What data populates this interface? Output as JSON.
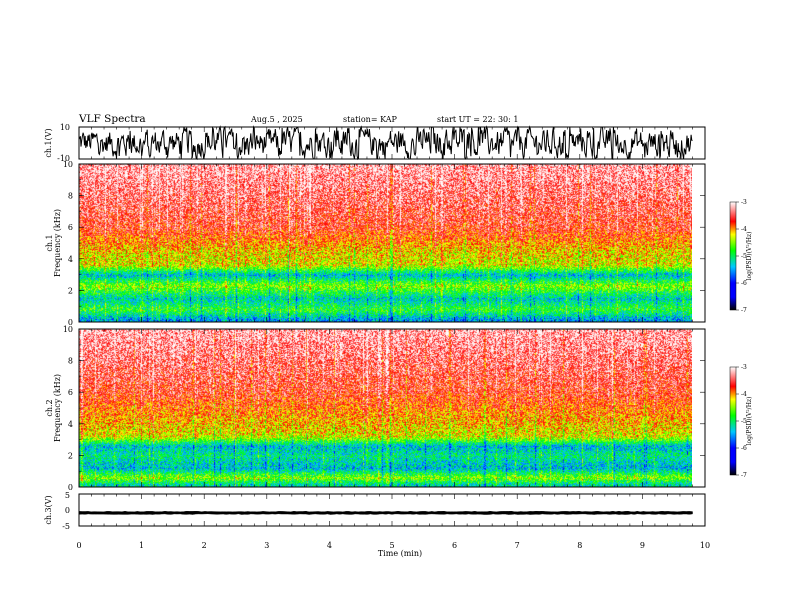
{
  "header": {
    "title": "VLF Spectra",
    "date": "Aug.5 , 2025",
    "station": "station= KAP",
    "start_ut": "start UT =   22: 30: 1"
  },
  "chart_data": [
    {
      "type": "line",
      "name": "ch1-waveform",
      "ylabel": "ch.1(V)",
      "ylim": [
        -10,
        10
      ],
      "ytick_labels": [
        "10",
        "-10"
      ],
      "xlim": [
        0,
        10
      ],
      "data_xmax": 9.8,
      "description": "noisy waveform",
      "typical_range": [
        -9,
        9
      ]
    },
    {
      "type": "heatmap",
      "name": "ch1-spectrogram",
      "ylabel": "ch.1\nFrequency (kHz)",
      "ylim": [
        0,
        10
      ],
      "ytick_labels": [
        "0",
        "2",
        "4",
        "6",
        "8",
        "10"
      ],
      "xlim": [
        0,
        10
      ],
      "data_xmax": 9.8,
      "band_profile": [
        {
          "f": 0.2,
          "level": -5.5
        },
        {
          "f": 0.8,
          "level": -4.8
        },
        {
          "f": 1.5,
          "level": -5.3
        },
        {
          "f": 2.3,
          "level": -4.5
        },
        {
          "f": 3.0,
          "level": -5.4
        },
        {
          "f": 3.6,
          "level": -4.3
        },
        {
          "f": 4.4,
          "level": -4.2
        },
        {
          "f": 6.0,
          "level": -3.6
        },
        {
          "f": 10.0,
          "level": -3.2
        }
      ],
      "colorbar": {
        "label": "log(PSD)(V²/Hz)",
        "ticks": [
          "-3",
          "-4",
          "-5",
          "-6",
          "-7"
        ],
        "range": [
          -7,
          -3
        ]
      }
    },
    {
      "type": "heatmap",
      "name": "ch2-spectrogram",
      "ylabel": "ch.2\nFrequency (kHz)",
      "ylim": [
        0,
        10
      ],
      "ytick_labels": [
        "0",
        "2",
        "4",
        "6",
        "8",
        "10"
      ],
      "xlim": [
        0,
        10
      ],
      "data_xmax": 9.8,
      "band_profile": [
        {
          "f": 0.2,
          "level": -5.2
        },
        {
          "f": 0.6,
          "level": -4.5
        },
        {
          "f": 1.2,
          "level": -5.4
        },
        {
          "f": 2.0,
          "level": -5.1
        },
        {
          "f": 2.6,
          "level": -5.4
        },
        {
          "f": 3.2,
          "level": -4.3
        },
        {
          "f": 4.5,
          "level": -4.0
        },
        {
          "f": 6.0,
          "level": -3.6
        },
        {
          "f": 10.0,
          "level": -3.2
        }
      ],
      "colorbar": {
        "label": "log(PSD)(V²/Hz)",
        "ticks": [
          "-3",
          "-4",
          "-5",
          "-6",
          "-7"
        ],
        "range": [
          -7,
          -3
        ]
      }
    },
    {
      "type": "line",
      "name": "ch3-waveform",
      "ylabel": "ch.3(V)",
      "ylim": [
        -5,
        5
      ],
      "ytick_labels": [
        "5",
        "0",
        "-5"
      ],
      "xlim": [
        0,
        10
      ],
      "data_xmax": 9.8,
      "typical_range": [
        -1.3,
        -0.5
      ]
    }
  ],
  "xaxis": {
    "label": "Time (min)",
    "tick_labels": [
      "0",
      "1",
      "2",
      "3",
      "4",
      "5",
      "6",
      "7",
      "8",
      "9",
      "10"
    ]
  },
  "colors": {
    "ink": "#000000",
    "background": "#ffffff"
  }
}
